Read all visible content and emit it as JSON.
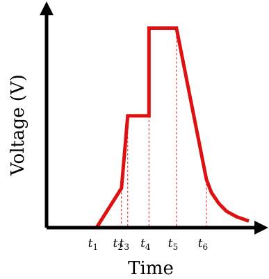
{
  "chart_data": {
    "type": "line",
    "title": "",
    "xlabel": "Time",
    "ylabel": "Voltage (V)",
    "x_ticks": [
      {
        "name": "t",
        "sub": "1",
        "x": 1.0
      },
      {
        "name": "t",
        "sub": "2",
        "x": 2.0
      },
      {
        "name": "t",
        "sub": "3",
        "x": 2.25
      },
      {
        "name": "t",
        "sub": "4",
        "x": 3.1
      },
      {
        "name": "t",
        "sub": "5",
        "x": 4.2
      },
      {
        "name": "t",
        "sub": "6",
        "x": 5.4
      }
    ],
    "xlim": [
      -1.0,
      7.6
    ],
    "ylim": [
      0,
      10
    ],
    "grid": false,
    "series": [
      {
        "color": "#dd1111",
        "points": [
          [
            -1.0,
            0.0
          ],
          [
            1.0,
            0.0
          ],
          [
            2.0,
            1.8
          ],
          [
            2.25,
            5.1
          ],
          [
            3.1,
            5.1
          ],
          [
            3.1,
            9.1
          ],
          [
            4.2,
            9.1
          ],
          [
            5.4,
            2.2
          ],
          [
            5.6,
            1.6
          ],
          [
            5.9,
            1.1
          ],
          [
            6.2,
            0.75
          ],
          [
            6.6,
            0.5
          ],
          [
            7.1,
            0.3
          ]
        ]
      }
    ],
    "guides": [
      {
        "x": 2.0,
        "y": 1.8
      },
      {
        "x": 2.25,
        "y": 5.1
      },
      {
        "x": 3.1,
        "y": 5.1
      },
      {
        "x": 4.2,
        "y": 9.1
      },
      {
        "x": 5.4,
        "y": 2.2
      }
    ],
    "colors": {
      "axis": "#000000",
      "series": "#dd1111",
      "guide": "#dd1111"
    }
  }
}
